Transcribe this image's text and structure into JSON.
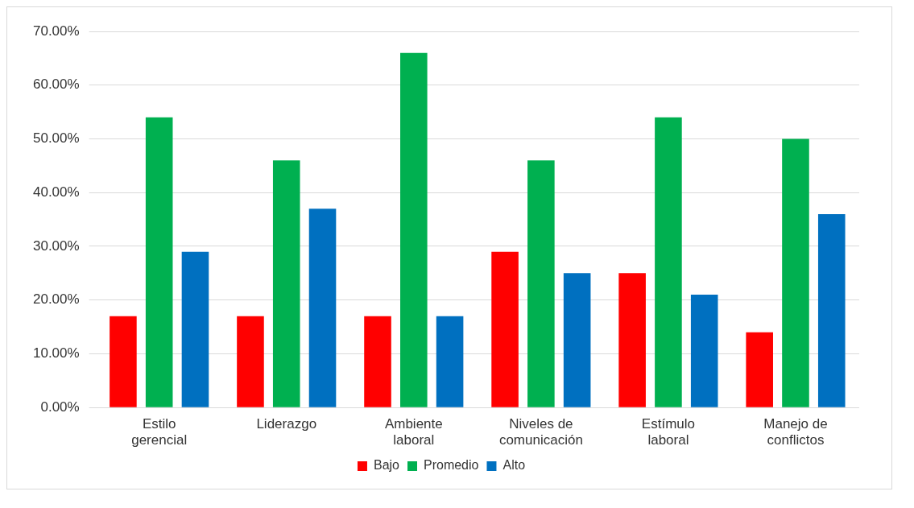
{
  "chart_data": {
    "type": "bar",
    "categories": [
      "Estilo gerencial",
      "Liderazgo",
      "Ambiente laboral",
      "Niveles de comunicación",
      "Estímulo laboral",
      "Manejo de conflictos"
    ],
    "series": [
      {
        "name": "Bajo",
        "color": "#ff0000",
        "values": [
          17,
          17,
          17,
          29,
          25,
          14
        ]
      },
      {
        "name": "Promedio",
        "color": "#00b050",
        "values": [
          54,
          46,
          66,
          46,
          54,
          50
        ]
      },
      {
        "name": "Alto",
        "color": "#0070c0",
        "values": [
          29,
          37,
          17,
          25,
          21,
          36
        ]
      }
    ],
    "ylim": [
      0,
      70
    ],
    "yticks": [
      {
        "value": 0,
        "label": "0.00%"
      },
      {
        "value": 10,
        "label": "10.00%"
      },
      {
        "value": 20,
        "label": "20.00%"
      },
      {
        "value": 30,
        "label": "30.00%"
      },
      {
        "value": 40,
        "label": "40.00%"
      },
      {
        "value": 50,
        "label": "50.00%"
      },
      {
        "value": 60,
        "label": "60.00%"
      },
      {
        "value": 70,
        "label": "70.00%"
      }
    ],
    "grid": "y",
    "legend": "bottom"
  }
}
